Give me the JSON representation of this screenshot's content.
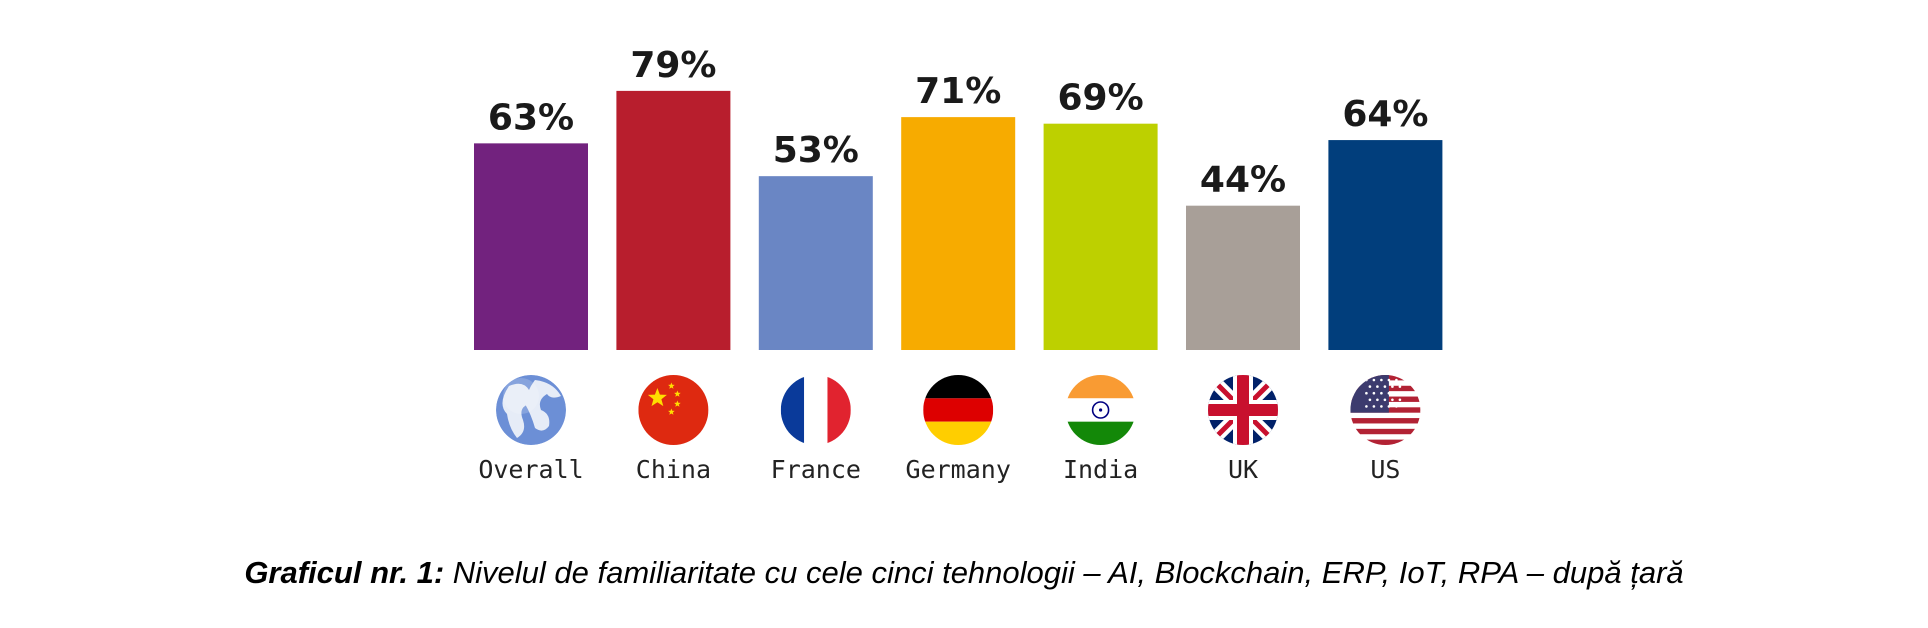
{
  "chart_data": {
    "type": "bar",
    "categories": [
      "Overall",
      "China",
      "France",
      "Germany",
      "India",
      "UK",
      "US"
    ],
    "values": [
      63,
      79,
      53,
      71,
      69,
      44,
      64
    ],
    "value_labels": [
      "63%",
      "79%",
      "53%",
      "71%",
      "69%",
      "44%",
      "64%"
    ],
    "colors": [
      "#72227e",
      "#b81e2d",
      "#6a86c4",
      "#f7ab00",
      "#bdd000",
      "#a89f98",
      "#013e7c"
    ],
    "icons": [
      "globe-icon",
      "china-flag-icon",
      "france-flag-icon",
      "germany-flag-icon",
      "india-flag-icon",
      "uk-flag-icon",
      "us-flag-icon"
    ],
    "ylim": [
      0,
      100
    ],
    "grid": false,
    "legend": "none"
  },
  "caption": {
    "label": "Graficul nr. 1:",
    "text": " Nivelul de familiaritate cu cele cinci tehnologii – AI, Blockchain, ERP, IoT, RPA – după țară"
  }
}
